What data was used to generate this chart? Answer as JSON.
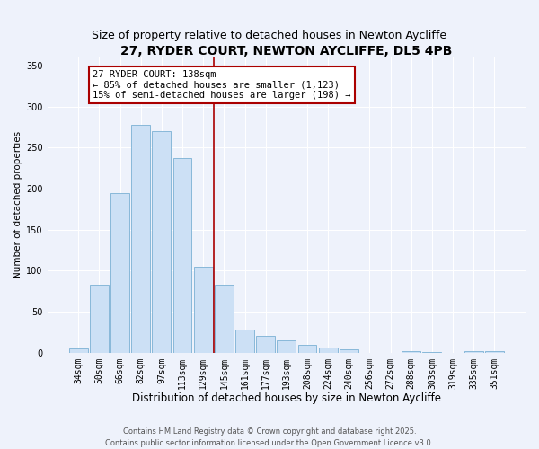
{
  "title": "27, RYDER COURT, NEWTON AYCLIFFE, DL5 4PB",
  "subtitle": "Size of property relative to detached houses in Newton Aycliffe",
  "xlabel": "Distribution of detached houses by size in Newton Aycliffe",
  "ylabel": "Number of detached properties",
  "categories": [
    "34sqm",
    "50sqm",
    "66sqm",
    "82sqm",
    "97sqm",
    "113sqm",
    "129sqm",
    "145sqm",
    "161sqm",
    "177sqm",
    "193sqm",
    "208sqm",
    "224sqm",
    "240sqm",
    "256sqm",
    "272sqm",
    "288sqm",
    "303sqm",
    "319sqm",
    "335sqm",
    "351sqm"
  ],
  "values": [
    5,
    83,
    195,
    278,
    270,
    237,
    105,
    83,
    28,
    20,
    15,
    10,
    6,
    4,
    0,
    0,
    2,
    1,
    0,
    2,
    2
  ],
  "bar_color": "#cce0f5",
  "bar_edge_color": "#7ab0d4",
  "vline_color": "#aa0000",
  "annotation_text": "27 RYDER COURT: 138sqm\n← 85% of detached houses are smaller (1,123)\n15% of semi-detached houses are larger (198) →",
  "annotation_box_color": "#ffffff",
  "annotation_box_edge": "#aa0000",
  "ylim": [
    0,
    360
  ],
  "yticks": [
    0,
    50,
    100,
    150,
    200,
    250,
    300,
    350
  ],
  "background_color": "#eef2fb",
  "footer1": "Contains HM Land Registry data © Crown copyright and database right 2025.",
  "footer2": "Contains public sector information licensed under the Open Government Licence v3.0.",
  "title_fontsize": 10,
  "subtitle_fontsize": 9,
  "xlabel_fontsize": 8.5,
  "ylabel_fontsize": 7.5,
  "tick_fontsize": 7,
  "annotation_fontsize": 7.5,
  "footer_fontsize": 6
}
